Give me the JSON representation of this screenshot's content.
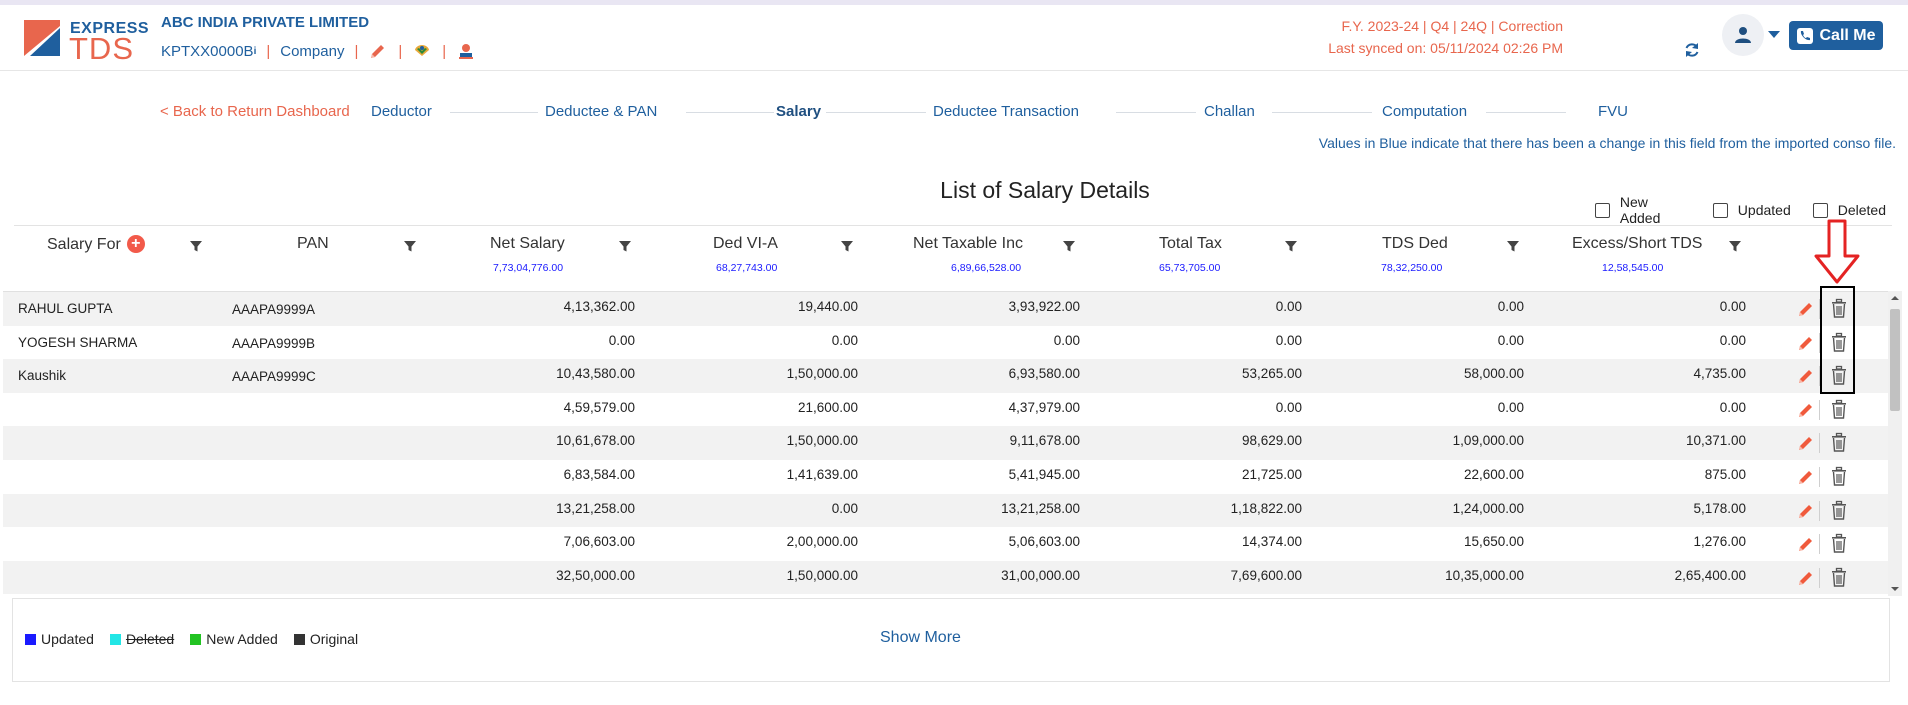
{
  "brand": {
    "express": "EXPRESS",
    "tds": "TDS"
  },
  "company": {
    "name": "ABC INDIA PRIVATE LIMITED",
    "tan": "KPTXX0000B",
    "tan_sup": "i",
    "type": "Company"
  },
  "return_info": {
    "fy_line": "F.Y. 2023-24  | Q4  | 24Q | Correction",
    "sync_line": "Last synced on: 05/11/2024 02:26 PM"
  },
  "call_me": "Call Me",
  "nav": {
    "back": "< Back to Return Dashboard",
    "steps": [
      "Deductor",
      "Deductee & PAN",
      "Salary",
      "Deductee Transaction",
      "Challan",
      "Computation",
      "FVU"
    ],
    "active": "Salary"
  },
  "info_note": "Values in Blue indicate that there has been a change in this field from the imported conso file.",
  "title": "List of Salary Details",
  "filters": [
    "New Added",
    "Updated",
    "Deleted"
  ],
  "columns": [
    {
      "label": "Salary For",
      "total": ""
    },
    {
      "label": "PAN",
      "total": ""
    },
    {
      "label": "Net Salary",
      "total": "7,73,04,776.00"
    },
    {
      "label": "Ded VI-A",
      "total": "68,27,743.00"
    },
    {
      "label": "Net Taxable Inc",
      "total": "6,89,66,528.00"
    },
    {
      "label": "Total Tax",
      "total": "65,73,705.00"
    },
    {
      "label": "TDS Ded",
      "total": "78,32,250.00"
    },
    {
      "label": "Excess/Short TDS",
      "total": "12,58,545.00"
    }
  ],
  "rows": [
    [
      "RAHUL GUPTA",
      "AAAPA9999A",
      "4,13,362.00",
      "19,440.00",
      "3,93,922.00",
      "0.00",
      "0.00",
      "0.00"
    ],
    [
      "YOGESH SHARMA",
      "AAAPA9999B",
      "0.00",
      "0.00",
      "0.00",
      "0.00",
      "0.00",
      "0.00"
    ],
    [
      "Kaushik",
      "AAAPA9999C",
      "10,43,580.00",
      "1,50,000.00",
      "6,93,580.00",
      "53,265.00",
      "58,000.00",
      "4,735.00"
    ],
    [
      "",
      "",
      "4,59,579.00",
      "21,600.00",
      "4,37,979.00",
      "0.00",
      "0.00",
      "0.00"
    ],
    [
      "",
      "",
      "10,61,678.00",
      "1,50,000.00",
      "9,11,678.00",
      "98,629.00",
      "1,09,000.00",
      "10,371.00"
    ],
    [
      "",
      "",
      "6,83,584.00",
      "1,41,639.00",
      "5,41,945.00",
      "21,725.00",
      "22,600.00",
      "875.00"
    ],
    [
      "",
      "",
      "13,21,258.00",
      "0.00",
      "13,21,258.00",
      "1,18,822.00",
      "1,24,000.00",
      "5,178.00"
    ],
    [
      "",
      "",
      "7,06,603.00",
      "2,00,000.00",
      "5,06,603.00",
      "14,374.00",
      "15,650.00",
      "1,276.00"
    ],
    [
      "",
      "",
      "32,50,000.00",
      "1,50,000.00",
      "31,00,000.00",
      "7,69,600.00",
      "10,35,000.00",
      "2,65,400.00"
    ]
  ],
  "legend": [
    {
      "label": "Updated",
      "color": "#1a1aff"
    },
    {
      "label": "Deleted",
      "color": "#22e6e6"
    },
    {
      "label": "New Added",
      "color": "#22c322"
    },
    {
      "label": "Original",
      "color": "#333333"
    }
  ],
  "show_more": "Show More",
  "colors": {
    "brand_blue": "#1f5f9e",
    "accent_orange": "#e8664d",
    "total_blue": "#1a1aff"
  }
}
